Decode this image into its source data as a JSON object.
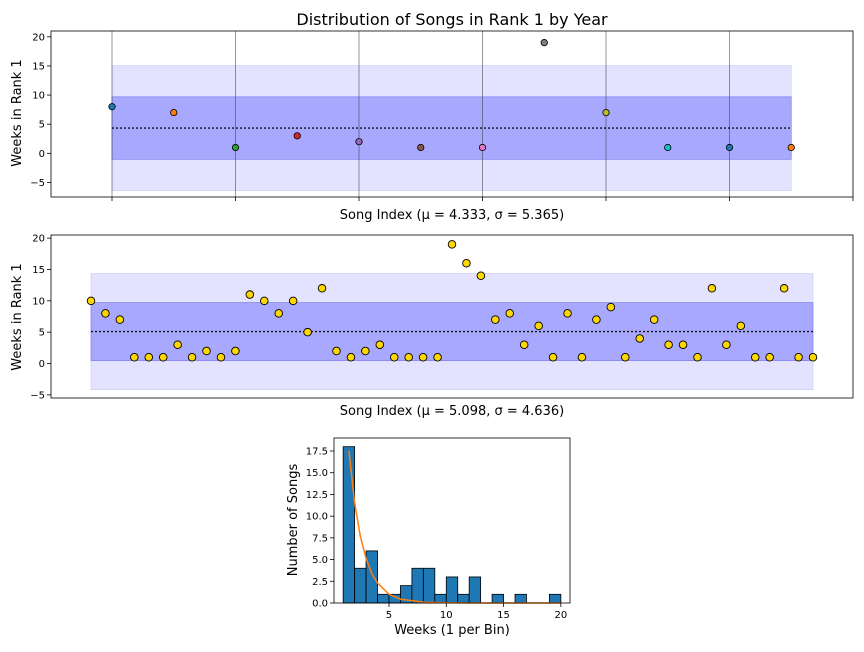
{
  "chart_data": [
    {
      "type": "scatter",
      "title": "Distribution of Songs in Rank 1 by Year",
      "xlabel": "Song Index ($\\mu = 4.333$, $\\sigma = 5.365$)",
      "xlabel_display": "Song Index (μ = 4.333, σ = 5.365)",
      "ylabel": "Weeks in Rank 1",
      "xlim": [
        0,
        12
      ],
      "ylim": [
        -7.5,
        21
      ],
      "yticks": [
        -5,
        0,
        5,
        10,
        15,
        20
      ],
      "xticks": [
        0,
        2,
        4,
        6,
        8,
        10,
        12
      ],
      "x_tick_labels_shown": false,
      "vertical_gridlines": true,
      "mean": 4.333,
      "std": 5.365,
      "bands": [
        {
          "name": "1 sigma",
          "low": -1.03,
          "high": 9.7,
          "color": "#a8a8ff"
        },
        {
          "name": "2 sigma",
          "low": -6.4,
          "high": 15.06,
          "color": "#e3e3ff"
        }
      ],
      "band_x": [
        0,
        11
      ],
      "points": [
        {
          "x": 0,
          "y": 8,
          "color": "#1f77b4"
        },
        {
          "x": 1,
          "y": 7,
          "color": "#ff7f0e"
        },
        {
          "x": 2,
          "y": 1,
          "color": "#2ca02c"
        },
        {
          "x": 3,
          "y": 3,
          "color": "#d62728"
        },
        {
          "x": 4,
          "y": 2,
          "color": "#9467bd"
        },
        {
          "x": 5,
          "y": 1,
          "color": "#8c564b"
        },
        {
          "x": 6,
          "y": 1,
          "color": "#e377c2"
        },
        {
          "x": 7,
          "y": 19,
          "color": "#7f7f7f"
        },
        {
          "x": 8,
          "y": 7,
          "color": "#bcbd22"
        },
        {
          "x": 9,
          "y": 1,
          "color": "#17becf"
        },
        {
          "x": 10,
          "y": 1,
          "color": "#1f77b4"
        },
        {
          "x": 11,
          "y": 1,
          "color": "#ff7f0e"
        }
      ]
    },
    {
      "type": "scatter",
      "xlabel": "Song Index ($\\mu = 5.098$, $\\sigma = 4.636$)",
      "xlabel_display": "Song Index (μ = 5.098, σ = 4.636)",
      "ylabel": "Weeks in Rank 1",
      "ylim": [
        -5.5,
        20.5
      ],
      "yticks": [
        -5,
        0,
        5,
        10,
        15,
        20
      ],
      "x_tick_labels_shown": false,
      "mean": 5.098,
      "std": 4.636,
      "bands": [
        {
          "name": "1 sigma",
          "low": 0.46,
          "high": 9.73,
          "color": "#a8a8ff"
        },
        {
          "name": "2 sigma",
          "low": -4.17,
          "high": 14.37,
          "color": "#e3e3ff"
        }
      ],
      "point_color": "#ffd700",
      "y": [
        10,
        8,
        7,
        1,
        1,
        1,
        3,
        1,
        2,
        1,
        2,
        11,
        10,
        8,
        10,
        5,
        12,
        2,
        1,
        2,
        3,
        1,
        1,
        1,
        1,
        19,
        16,
        14,
        7,
        8,
        3,
        6,
        1,
        8,
        1,
        7,
        9,
        1,
        4,
        7,
        3,
        3,
        1,
        12,
        3,
        6,
        1,
        1,
        12,
        1,
        1
      ]
    },
    {
      "type": "bar",
      "subtype": "histogram",
      "xlabel": "Weeks (1 per Bin)",
      "ylabel": "Number of Songs",
      "xlim": [
        0.2,
        20.8
      ],
      "ylim": [
        0,
        19
      ],
      "xticks": [
        5,
        10,
        15,
        20
      ],
      "yticks": [
        0.0,
        2.5,
        5.0,
        7.5,
        10.0,
        12.5,
        15.0,
        17.5
      ],
      "ytick_labels": [
        "0.0",
        "2.5",
        "5.0",
        "7.5",
        "10.0",
        "12.5",
        "15.0",
        "17.5"
      ],
      "bar_color": "#1f77b4",
      "curve_color": "#ff7f0e",
      "bins": [
        {
          "low": 1,
          "high": 2,
          "count": 18
        },
        {
          "low": 2,
          "high": 3,
          "count": 4
        },
        {
          "low": 3,
          "high": 4,
          "count": 6
        },
        {
          "low": 4,
          "high": 5,
          "count": 1
        },
        {
          "low": 5,
          "high": 6,
          "count": 1
        },
        {
          "low": 6,
          "high": 7,
          "count": 2
        },
        {
          "low": 7,
          "high": 8,
          "count": 4
        },
        {
          "low": 8,
          "high": 9,
          "count": 4
        },
        {
          "low": 9,
          "high": 10,
          "count": 1
        },
        {
          "low": 10,
          "high": 11,
          "count": 3
        },
        {
          "low": 11,
          "high": 12,
          "count": 1
        },
        {
          "low": 12,
          "high": 13,
          "count": 3
        },
        {
          "low": 13,
          "high": 14,
          "count": 0
        },
        {
          "low": 14,
          "high": 15,
          "count": 1
        },
        {
          "low": 15,
          "high": 16,
          "count": 0
        },
        {
          "low": 16,
          "high": 17,
          "count": 1
        },
        {
          "low": 17,
          "high": 18,
          "count": 0
        },
        {
          "low": 18,
          "high": 19,
          "count": 0
        },
        {
          "low": 19,
          "high": 20,
          "count": 1
        }
      ],
      "fit_curve": {
        "type": "exponential",
        "x": [
          1.5,
          2,
          2.5,
          3,
          3.5,
          4,
          5,
          6,
          8,
          10,
          12,
          14,
          16,
          18,
          20
        ],
        "y": [
          17.5,
          11.6,
          7.7,
          5.1,
          3.4,
          2.3,
          1.0,
          0.45,
          0.09,
          0.02,
          0.0,
          0.0,
          0.0,
          0.0,
          0.0
        ]
      }
    }
  ]
}
